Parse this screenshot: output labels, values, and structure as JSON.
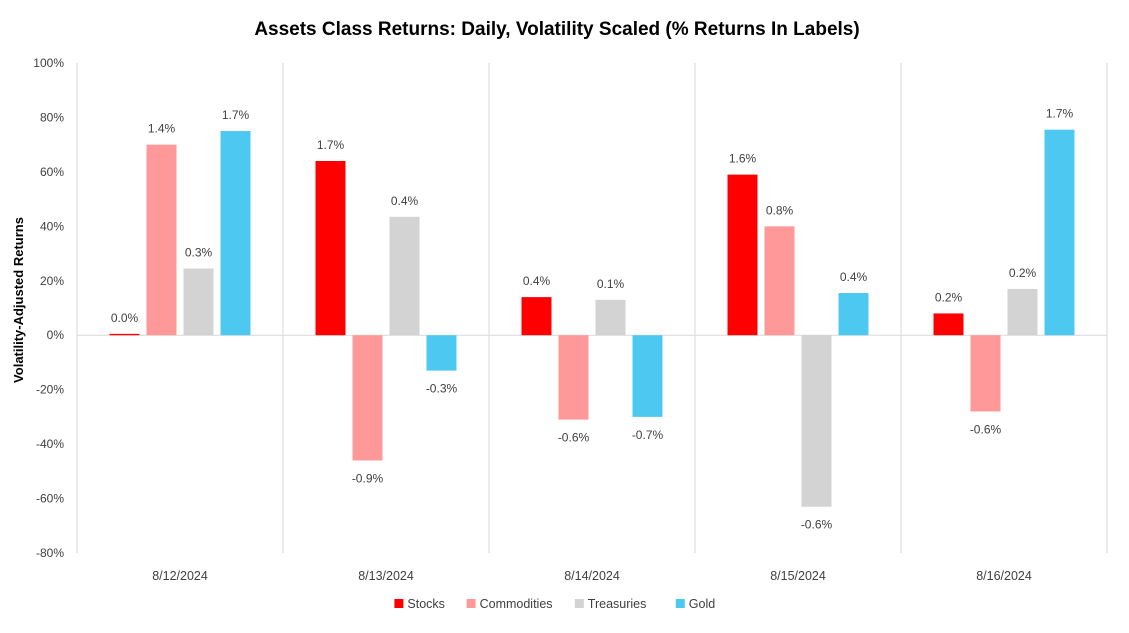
{
  "chart_data": {
    "type": "bar",
    "title": "Assets Class Returns: Daily, Volatility Scaled (% Returns In Labels)",
    "xlabel": "",
    "ylabel": "Volatility-Adjusted Returns",
    "ylim": [
      -80,
      100
    ],
    "yticks": [
      100,
      80,
      60,
      40,
      20,
      0,
      -20,
      -40,
      -60,
      -80
    ],
    "ytick_labels": [
      "100%",
      "80%",
      "60%",
      "40%",
      "20%",
      "0%",
      "-20%",
      "-40%",
      "-60%",
      "-80%"
    ],
    "categories": [
      "8/12/2024",
      "8/13/2024",
      "8/14/2024",
      "8/15/2024",
      "8/16/2024"
    ],
    "series": [
      {
        "name": "Stocks",
        "color": "#ff0000",
        "values": [
          0.5,
          64,
          14,
          59,
          8
        ],
        "labels": [
          "0.0%",
          "1.7%",
          "0.4%",
          "1.6%",
          "0.2%"
        ]
      },
      {
        "name": "Commodities",
        "color": "#ff9999",
        "values": [
          70,
          -46,
          -31,
          40,
          -28
        ],
        "labels": [
          "1.4%",
          "-0.9%",
          "-0.6%",
          "0.8%",
          "-0.6%"
        ]
      },
      {
        "name": "Treasuries",
        "color": "#d3d3d3",
        "values": [
          24.5,
          43.5,
          13,
          -63,
          17
        ],
        "labels": [
          "0.3%",
          "0.4%",
          "0.1%",
          "-0.6%",
          "0.2%"
        ]
      },
      {
        "name": "Gold",
        "color": "#4dc8f0",
        "values": [
          75,
          -13,
          -30,
          15.5,
          75.5
        ],
        "labels": [
          "1.7%",
          "-0.3%",
          "-0.7%",
          "0.4%",
          "1.7%"
        ]
      }
    ],
    "grid": false,
    "legend_position": "bottom-center"
  }
}
